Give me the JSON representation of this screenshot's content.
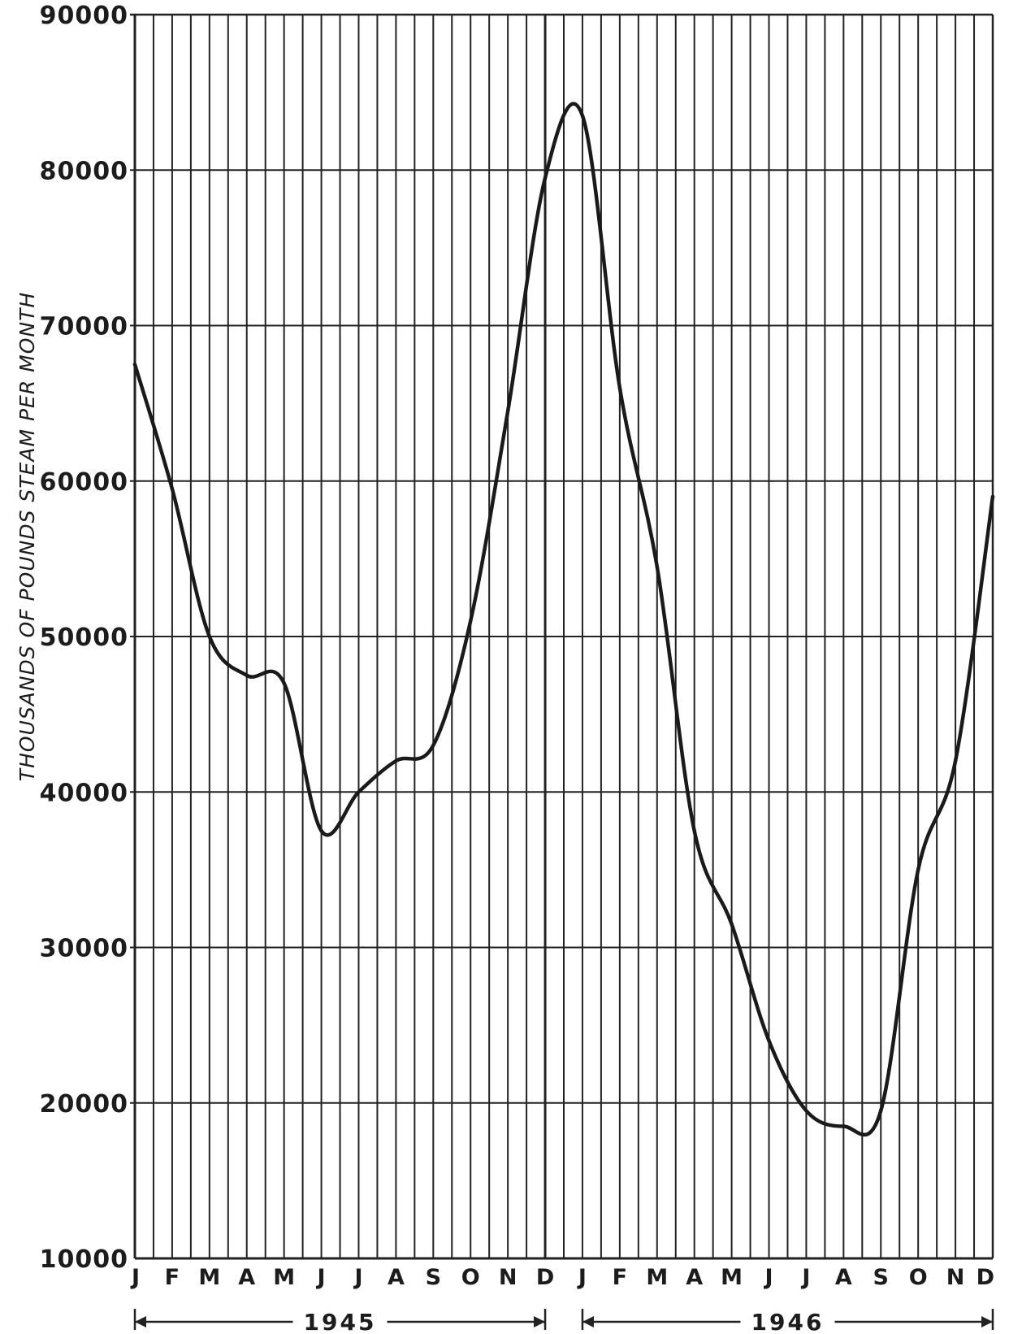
{
  "chart_data": {
    "type": "line",
    "title": "",
    "xlabel": "",
    "ylabel": "THOUSANDS OF POUNDS STEAM PER MONTH",
    "ylim": [
      10000,
      90000
    ],
    "yticks": [
      "90000",
      "80000",
      "70000",
      "60000",
      "50000",
      "40000",
      "30000",
      "20000",
      "10000"
    ],
    "categories": [
      "J",
      "F",
      "M",
      "A",
      "M",
      "J",
      "J",
      "A",
      "S",
      "O",
      "N",
      "D",
      "J",
      "F",
      "M",
      "A",
      "M",
      "J",
      "J",
      "A",
      "S",
      "O",
      "N",
      "D"
    ],
    "years": [
      {
        "label": "1945",
        "from": 0,
        "to": 11
      },
      {
        "label": "1946",
        "from": 12,
        "to": 23
      }
    ],
    "grid": true,
    "series": [
      {
        "values": [
          67500,
          59500,
          50000,
          47500,
          47000,
          37500,
          40000,
          42000,
          43000,
          51000,
          64500,
          79500,
          83500,
          66000,
          54500,
          37500,
          31500,
          24000,
          19500,
          18500,
          19500,
          35000,
          42000,
          59000
        ]
      }
    ],
    "colors": {
      "line": "#1a1a1a",
      "grid": "#222222",
      "background": "#ffffff"
    }
  }
}
